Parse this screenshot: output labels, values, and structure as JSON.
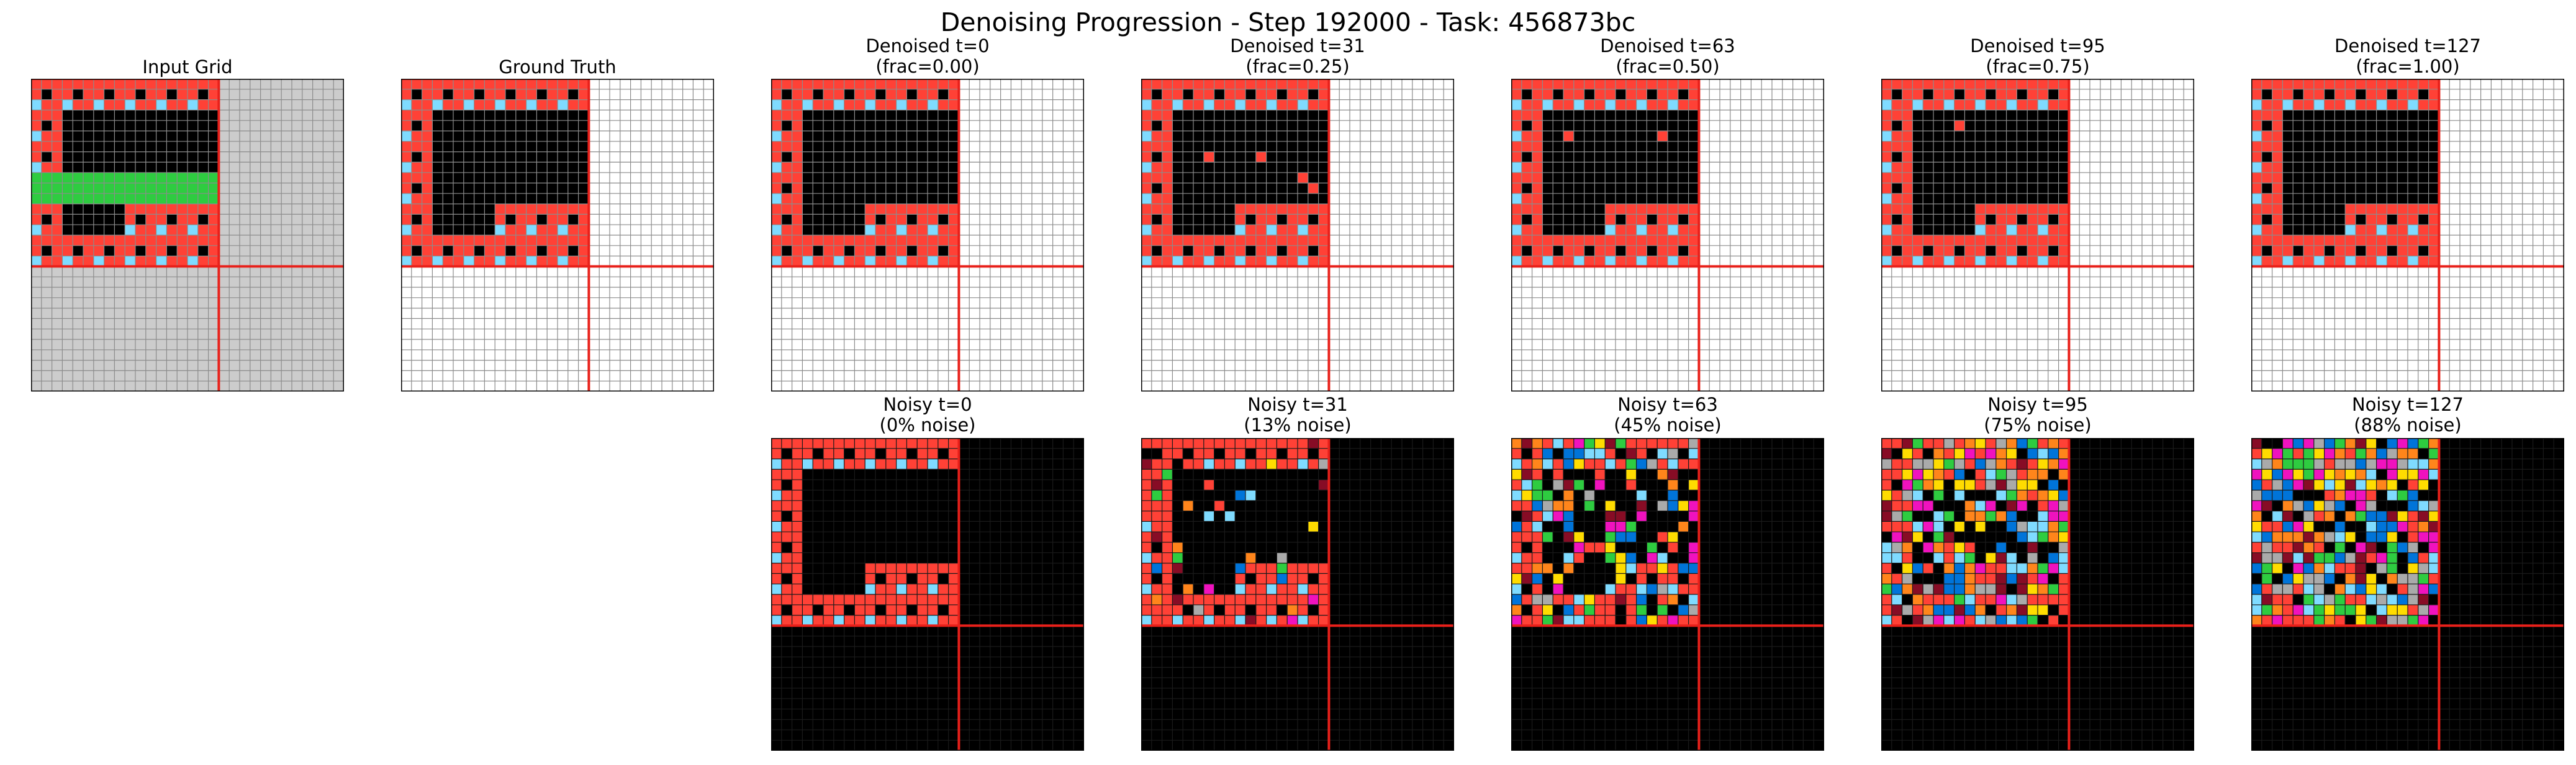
{
  "figure": {
    "title": "Denoising Progression - Step 192000 - Task: 456873bc"
  },
  "colors": {
    "black": "#000000",
    "red": "#ff4136",
    "cyan": "#7fdbff",
    "green": "#2ecc40",
    "gray": "#cccccc",
    "white": "#ffffff",
    "blue": "#0074d9",
    "yellow": "#ffdc00",
    "magenta": "#f012be",
    "orange": "#ff851b",
    "maroon": "#870c25",
    "silver": "#aaaaaa",
    "separator": "#e8201a"
  },
  "grid_spec": {
    "rows": 30,
    "cols": 30,
    "active_rows": 18,
    "active_cols": 18
  },
  "panels": {
    "input": {
      "title": "Input Grid"
    },
    "truth": {
      "title": "Ground Truth"
    },
    "denoised": [
      {
        "title": "Denoised t=0\n(frac=0.00)"
      },
      {
        "title": "Denoised t=31\n(frac=0.25)"
      },
      {
        "title": "Denoised t=63\n(frac=0.50)"
      },
      {
        "title": "Denoised t=95\n(frac=0.75)"
      },
      {
        "title": "Denoised t=127\n(frac=1.00)"
      }
    ],
    "noisy": [
      {
        "title": "Noisy t=0\n(0% noise)",
        "noise": 0.0
      },
      {
        "title": "Noisy t=31\n(13% noise)",
        "noise": 0.13
      },
      {
        "title": "Noisy t=63\n(45% noise)",
        "noise": 0.45
      },
      {
        "title": "Noisy t=95\n(75% noise)",
        "noise": 0.75
      },
      {
        "title": "Noisy t=127\n(88% noise)",
        "noise": 0.88
      }
    ]
  }
}
